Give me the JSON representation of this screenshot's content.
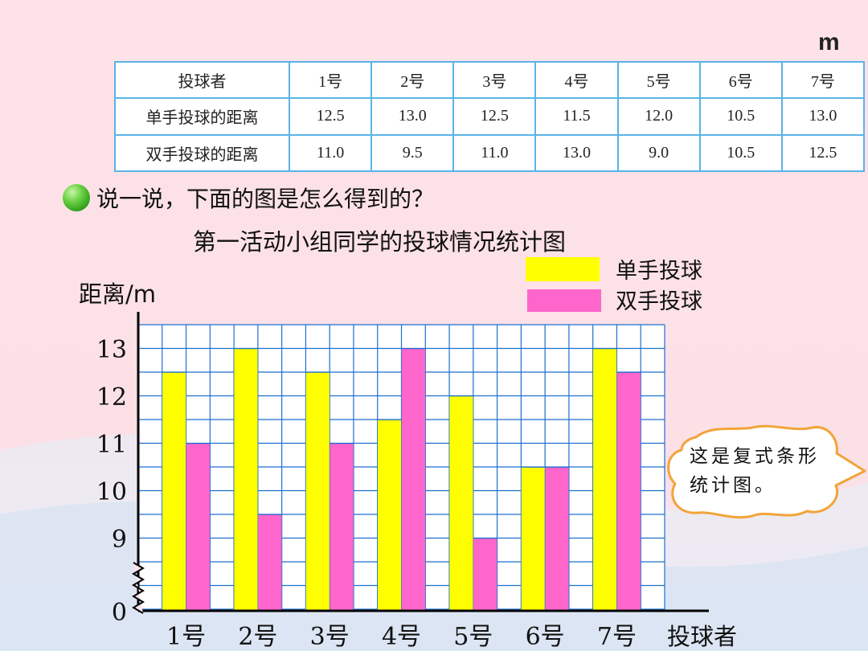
{
  "unit": "m",
  "table": {
    "header": [
      "投球者",
      "1号",
      "2号",
      "3号",
      "4号",
      "5号",
      "6号",
      "7号"
    ],
    "rows": [
      {
        "label": "单手投球的距离",
        "values": [
          "12.5",
          "13.0",
          "12.5",
          "11.5",
          "12.0",
          "10.5",
          "13.0"
        ]
      },
      {
        "label": "双手投球的距离",
        "values": [
          "11.0",
          "9.5",
          "11.0",
          "13.0",
          "9.0",
          "10.5",
          "12.5"
        ]
      }
    ]
  },
  "prompt": "说一说，下面的图是怎么得到的？",
  "callout": "这是复式条形统计图。",
  "colors": {
    "single": "#ffff00",
    "double": "#ff66cc",
    "grid": "#1e6fd0",
    "axis": "#000000"
  },
  "chart_data": {
    "type": "bar",
    "title": "第一活动小组同学的投球情况统计图",
    "xlabel": "投球者",
    "ylabel": "距离/m",
    "categories": [
      "1号",
      "2号",
      "3号",
      "4号",
      "5号",
      "6号",
      "7号"
    ],
    "series": [
      {
        "name": "单手投球",
        "values": [
          12.5,
          13.0,
          12.5,
          11.5,
          12.0,
          10.5,
          13.0
        ]
      },
      {
        "name": "双手投球",
        "values": [
          11.0,
          9.5,
          11.0,
          13.0,
          9.0,
          10.5,
          12.5
        ]
      }
    ],
    "yticks": [
      "13",
      "12",
      "11",
      "10",
      "9",
      "0"
    ],
    "ylim": [
      8.5,
      13.5
    ],
    "axis_break": true,
    "grid": true,
    "legend_position": "top-right"
  }
}
